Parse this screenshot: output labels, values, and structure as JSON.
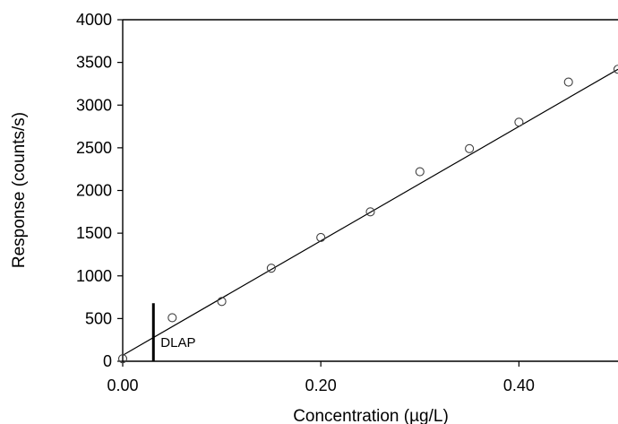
{
  "chart_data": {
    "type": "scatter",
    "title": "",
    "xlabel": "Concentration (µg/L)",
    "ylabel": "Response (counts/s)",
    "xlim": [
      0,
      0.5
    ],
    "ylim": [
      0,
      4000
    ],
    "x_ticks": [
      0,
      0.2,
      0.4
    ],
    "x_tick_labels": [
      "0.00",
      "0.20",
      "0.40"
    ],
    "y_ticks": [
      0,
      500,
      1000,
      1500,
      2000,
      2500,
      3000,
      3500,
      4000
    ],
    "y_tick_labels": [
      "0",
      "500",
      "1000",
      "1500",
      "2000",
      "2500",
      "3000",
      "3500",
      "4000"
    ],
    "grid": false,
    "legend": "none",
    "series": [
      {
        "marker": "open-circle",
        "x": [
          0.0,
          0.05,
          0.1,
          0.15,
          0.2,
          0.25,
          0.3,
          0.35,
          0.4,
          0.45,
          0.5
        ],
        "y": [
          30,
          510,
          700,
          1090,
          1450,
          1750,
          2220,
          2490,
          2800,
          3270,
          3420
        ]
      }
    ],
    "trendline": {
      "type": "linear",
      "x": [
        0.0,
        0.5
      ],
      "y": [
        70,
        3420
      ]
    },
    "annotations": [
      {
        "type": "vertical-marker",
        "label": "DLAP",
        "x": 0.031,
        "y_range": [
          0,
          680
        ]
      }
    ]
  }
}
